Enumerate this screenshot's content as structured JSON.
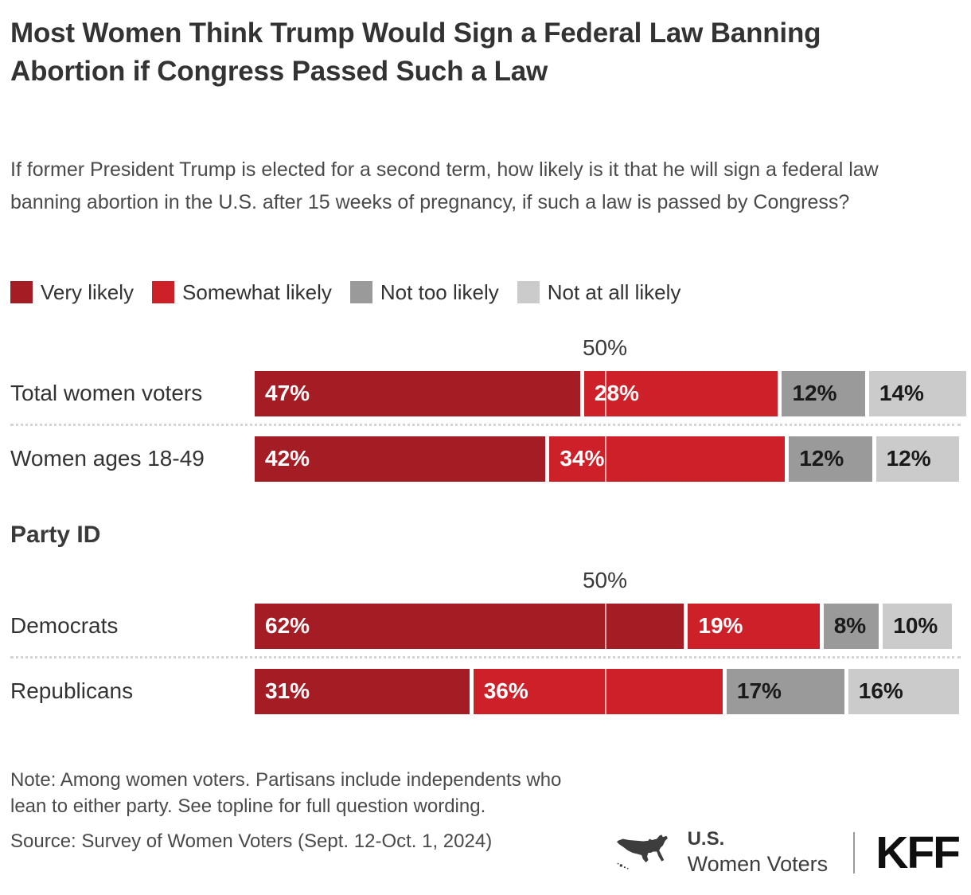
{
  "header": {
    "title": "Most Women Think Trump Would Sign a Federal Law Banning Abortion if Congress Passed Such a Law",
    "question": "If former President Trump is elected for a second term, how likely is it that he will sign a federal law banning abortion in the U.S. after 15 weeks of pregnancy, if such a law is passed by Congress?"
  },
  "legend": [
    {
      "label": "Very likely",
      "color": "#A41C24"
    },
    {
      "label": "Somewhat likely",
      "color": "#CE2029"
    },
    {
      "label": "Not too likely",
      "color": "#9A9A9A"
    },
    {
      "label": "Not at all likely",
      "color": "#CBCBCB"
    }
  ],
  "chart_data": {
    "type": "bar",
    "stacked": true,
    "orientation": "horizontal",
    "unit": "%",
    "x_range": [
      0,
      100
    ],
    "gridline": {
      "label": "50%",
      "value": 50
    },
    "series": [
      {
        "name": "Very likely",
        "color": "#A41C24",
        "text_color": "#ffffff"
      },
      {
        "name": "Somewhat likely",
        "color": "#CE2029",
        "text_color": "#ffffff"
      },
      {
        "name": "Not too likely",
        "color": "#9A9A9A",
        "text_color": "#1a1a1a"
      },
      {
        "name": "Not at all likely",
        "color": "#CBCBCB",
        "text_color": "#1a1a1a"
      }
    ],
    "groups": [
      {
        "heading": null,
        "rows": [
          {
            "label": "Total women voters",
            "values": [
              47,
              28,
              12,
              14
            ]
          },
          {
            "label": "Women ages 18-49",
            "values": [
              42,
              34,
              12,
              12
            ]
          }
        ]
      },
      {
        "heading": "Party ID",
        "rows": [
          {
            "label": "Democrats",
            "values": [
              62,
              19,
              8,
              10
            ]
          },
          {
            "label": "Republicans",
            "values": [
              31,
              36,
              17,
              16
            ]
          }
        ]
      }
    ]
  },
  "footer": {
    "note": "Note: Among women voters. Partisans include independents who lean to either party. See topline for full question wording.",
    "source": "Source: Survey of Women Voters (Sept. 12-Oct. 1, 2024)",
    "brand": {
      "region": "U.S.",
      "audience": "Women Voters",
      "logo": "KFF"
    }
  }
}
